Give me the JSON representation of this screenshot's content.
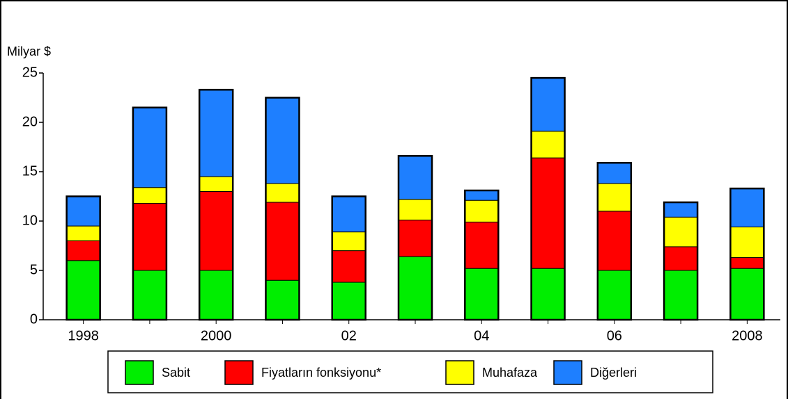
{
  "chart_data": {
    "type": "stacked_bar",
    "y_label": "Milyar $",
    "categories": [
      "1998",
      null,
      "2000",
      null,
      "02",
      null,
      "04",
      null,
      "06",
      null,
      "2008"
    ],
    "series": [
      {
        "name": "Sabit",
        "color": "#00ee00",
        "values": [
          6,
          5,
          5,
          4,
          3.8,
          6.4,
          5.2,
          5.2,
          5,
          5,
          5.2
        ]
      },
      {
        "name": "Fiyatların fonksiyonu*",
        "color": "#ff0000",
        "values": [
          2,
          6.8,
          8,
          7.9,
          3.2,
          3.7,
          4.7,
          11.2,
          6,
          2.4,
          1.1
        ]
      },
      {
        "name": "Muhafaza",
        "color": "#ffff00",
        "values": [
          1.5,
          1.6,
          1.5,
          1.9,
          1.9,
          2.1,
          2.2,
          2.7,
          2.8,
          3,
          3.1
        ]
      },
      {
        "name": "Diğerleri",
        "color": "#1e7fff",
        "values": [
          3,
          8.1,
          8.8,
          8.7,
          3.6,
          4.4,
          1,
          5.4,
          2.1,
          1.5,
          3.9
        ]
      }
    ],
    "ylim": [
      0,
      25
    ],
    "yticks": [
      0,
      5,
      10,
      15,
      20,
      25
    ],
    "legend": "bottom"
  }
}
